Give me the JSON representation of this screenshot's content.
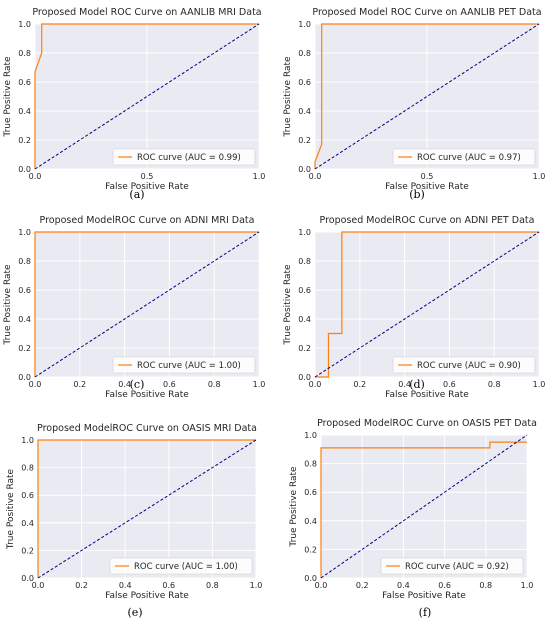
{
  "style": {
    "plot_bg": "#eaeaf2",
    "grid": "#ffffff",
    "roc_color": "#ff7f0e",
    "diag_color": "#00008b",
    "legend_bg": "#ffffff",
    "legend_border": "#cccccc"
  },
  "chart_data": [
    {
      "type": "line",
      "panel_label": "(a)",
      "title": "Proposed Model ROC Curve on AANLIB MRI Data",
      "xlabel": "False Positive Rate",
      "ylabel": "True Positive Rate",
      "xlim": [
        0,
        1
      ],
      "ylim": [
        0,
        1
      ],
      "xticks": [
        "0.0",
        "0.5",
        "1.0"
      ],
      "yticks": [
        "0.0",
        "0.2",
        "0.4",
        "0.6",
        "0.8",
        "1.0"
      ],
      "grid": true,
      "legend_position": "lower-right",
      "series": [
        {
          "name": "ROC curve (AUC = 0.99)",
          "x": [
            0,
            0,
            0.03,
            0.03,
            1
          ],
          "y": [
            0,
            0.67,
            0.8,
            1.0,
            1.0
          ]
        },
        {
          "style": "diagonal",
          "x": [
            0,
            1
          ],
          "y": [
            0,
            1
          ]
        }
      ]
    },
    {
      "type": "line",
      "panel_label": "(b)",
      "title": "Proposed Model ROC Curve on AANLIB PET Data",
      "xlabel": "False Positive Rate",
      "ylabel": "True Positive Rate",
      "xlim": [
        0,
        1
      ],
      "ylim": [
        0,
        1
      ],
      "xticks": [
        "0.0",
        "0.5",
        "1.0"
      ],
      "yticks": [
        "0.0",
        "0.2",
        "0.4",
        "0.6",
        "0.8",
        "1.0"
      ],
      "grid": true,
      "legend_position": "lower-right",
      "series": [
        {
          "name": "ROC curve (AUC = 0.97)",
          "x": [
            0,
            0,
            0.03,
            0.03,
            0.03,
            1
          ],
          "y": [
            0,
            0.05,
            0.17,
            0.2,
            1.0,
            1.0
          ]
        },
        {
          "style": "diagonal",
          "x": [
            0,
            1
          ],
          "y": [
            0,
            1
          ]
        }
      ]
    },
    {
      "type": "line",
      "panel_label": "(c)",
      "title": "Proposed ModelROC Curve on ADNI MRI Data",
      "xlabel": "False Positive Rate",
      "ylabel": "True Positive Rate",
      "xlim": [
        0,
        1
      ],
      "ylim": [
        0,
        1
      ],
      "xticks": [
        "0.0",
        "0.2",
        "0.4",
        "0.6",
        "0.8",
        "1.0"
      ],
      "yticks": [
        "0.0",
        "0.2",
        "0.4",
        "0.6",
        "0.8",
        "1.0"
      ],
      "grid": true,
      "legend_position": "lower-right",
      "series": [
        {
          "name": "ROC curve (AUC = 1.00)",
          "x": [
            0,
            0,
            1
          ],
          "y": [
            0,
            1.0,
            1.0
          ]
        },
        {
          "style": "diagonal",
          "x": [
            0,
            1
          ],
          "y": [
            0,
            1
          ]
        }
      ]
    },
    {
      "type": "line",
      "panel_label": "(d)",
      "title": "Proposed ModelROC Curve on ADNI PET Data",
      "xlabel": "False Positive Rate",
      "ylabel": "True Positive Rate",
      "xlim": [
        0,
        1
      ],
      "ylim": [
        0,
        1
      ],
      "xticks": [
        "0.0",
        "0.2",
        "0.4",
        "0.6",
        "0.8",
        "1.0"
      ],
      "yticks": [
        "0.0",
        "0.2",
        "0.4",
        "0.6",
        "0.8",
        "1.0"
      ],
      "grid": true,
      "legend_position": "lower-right",
      "series": [
        {
          "name": "ROC curve (AUC = 0.90)",
          "x": [
            0,
            0.06,
            0.06,
            0.12,
            0.12,
            1
          ],
          "y": [
            0,
            0,
            0.3,
            0.3,
            1.0,
            1.0
          ]
        },
        {
          "style": "diagonal",
          "x": [
            0,
            1
          ],
          "y": [
            0,
            1
          ]
        }
      ]
    },
    {
      "type": "line",
      "panel_label": "(e)",
      "title": "Proposed ModelROC Curve on OASIS MRI Data",
      "xlabel": "False Positive Rate",
      "ylabel": "True Positive Rate",
      "xlim": [
        0,
        1
      ],
      "ylim": [
        0,
        1
      ],
      "xticks": [
        "0.0",
        "0.2",
        "0.4",
        "0.6",
        "0.8",
        "1.0"
      ],
      "yticks": [
        "0.0",
        "0.2",
        "0.4",
        "0.6",
        "0.8",
        "1.0"
      ],
      "grid": true,
      "legend_position": "lower-right",
      "series": [
        {
          "name": "ROC curve (AUC = 1.00)",
          "x": [
            0,
            0,
            1
          ],
          "y": [
            0,
            1.0,
            1.0
          ]
        },
        {
          "style": "diagonal",
          "x": [
            0,
            1
          ],
          "y": [
            0,
            1
          ]
        }
      ]
    },
    {
      "type": "line",
      "panel_label": "(f)",
      "title": "Proposed ModelROC Curve on OASIS PET Data",
      "xlabel": "False Positive Rate",
      "ylabel": "True Positive Rate",
      "xlim": [
        0,
        1
      ],
      "ylim": [
        0,
        1
      ],
      "xticks": [
        "0.0",
        "0.2",
        "0.4",
        "0.6",
        "0.8",
        "1.0"
      ],
      "yticks": [
        "0.0",
        "0.2",
        "0.4",
        "0.6",
        "0.8",
        "1.0"
      ],
      "grid": true,
      "legend_position": "lower-right",
      "series": [
        {
          "name": "ROC curve (AUC = 0.92)",
          "x": [
            0,
            0,
            0.82,
            0.82,
            1
          ],
          "y": [
            0,
            0.91,
            0.91,
            0.95,
            0.95
          ]
        },
        {
          "style": "diagonal",
          "x": [
            0,
            1
          ],
          "y": [
            0,
            1
          ]
        }
      ]
    }
  ]
}
